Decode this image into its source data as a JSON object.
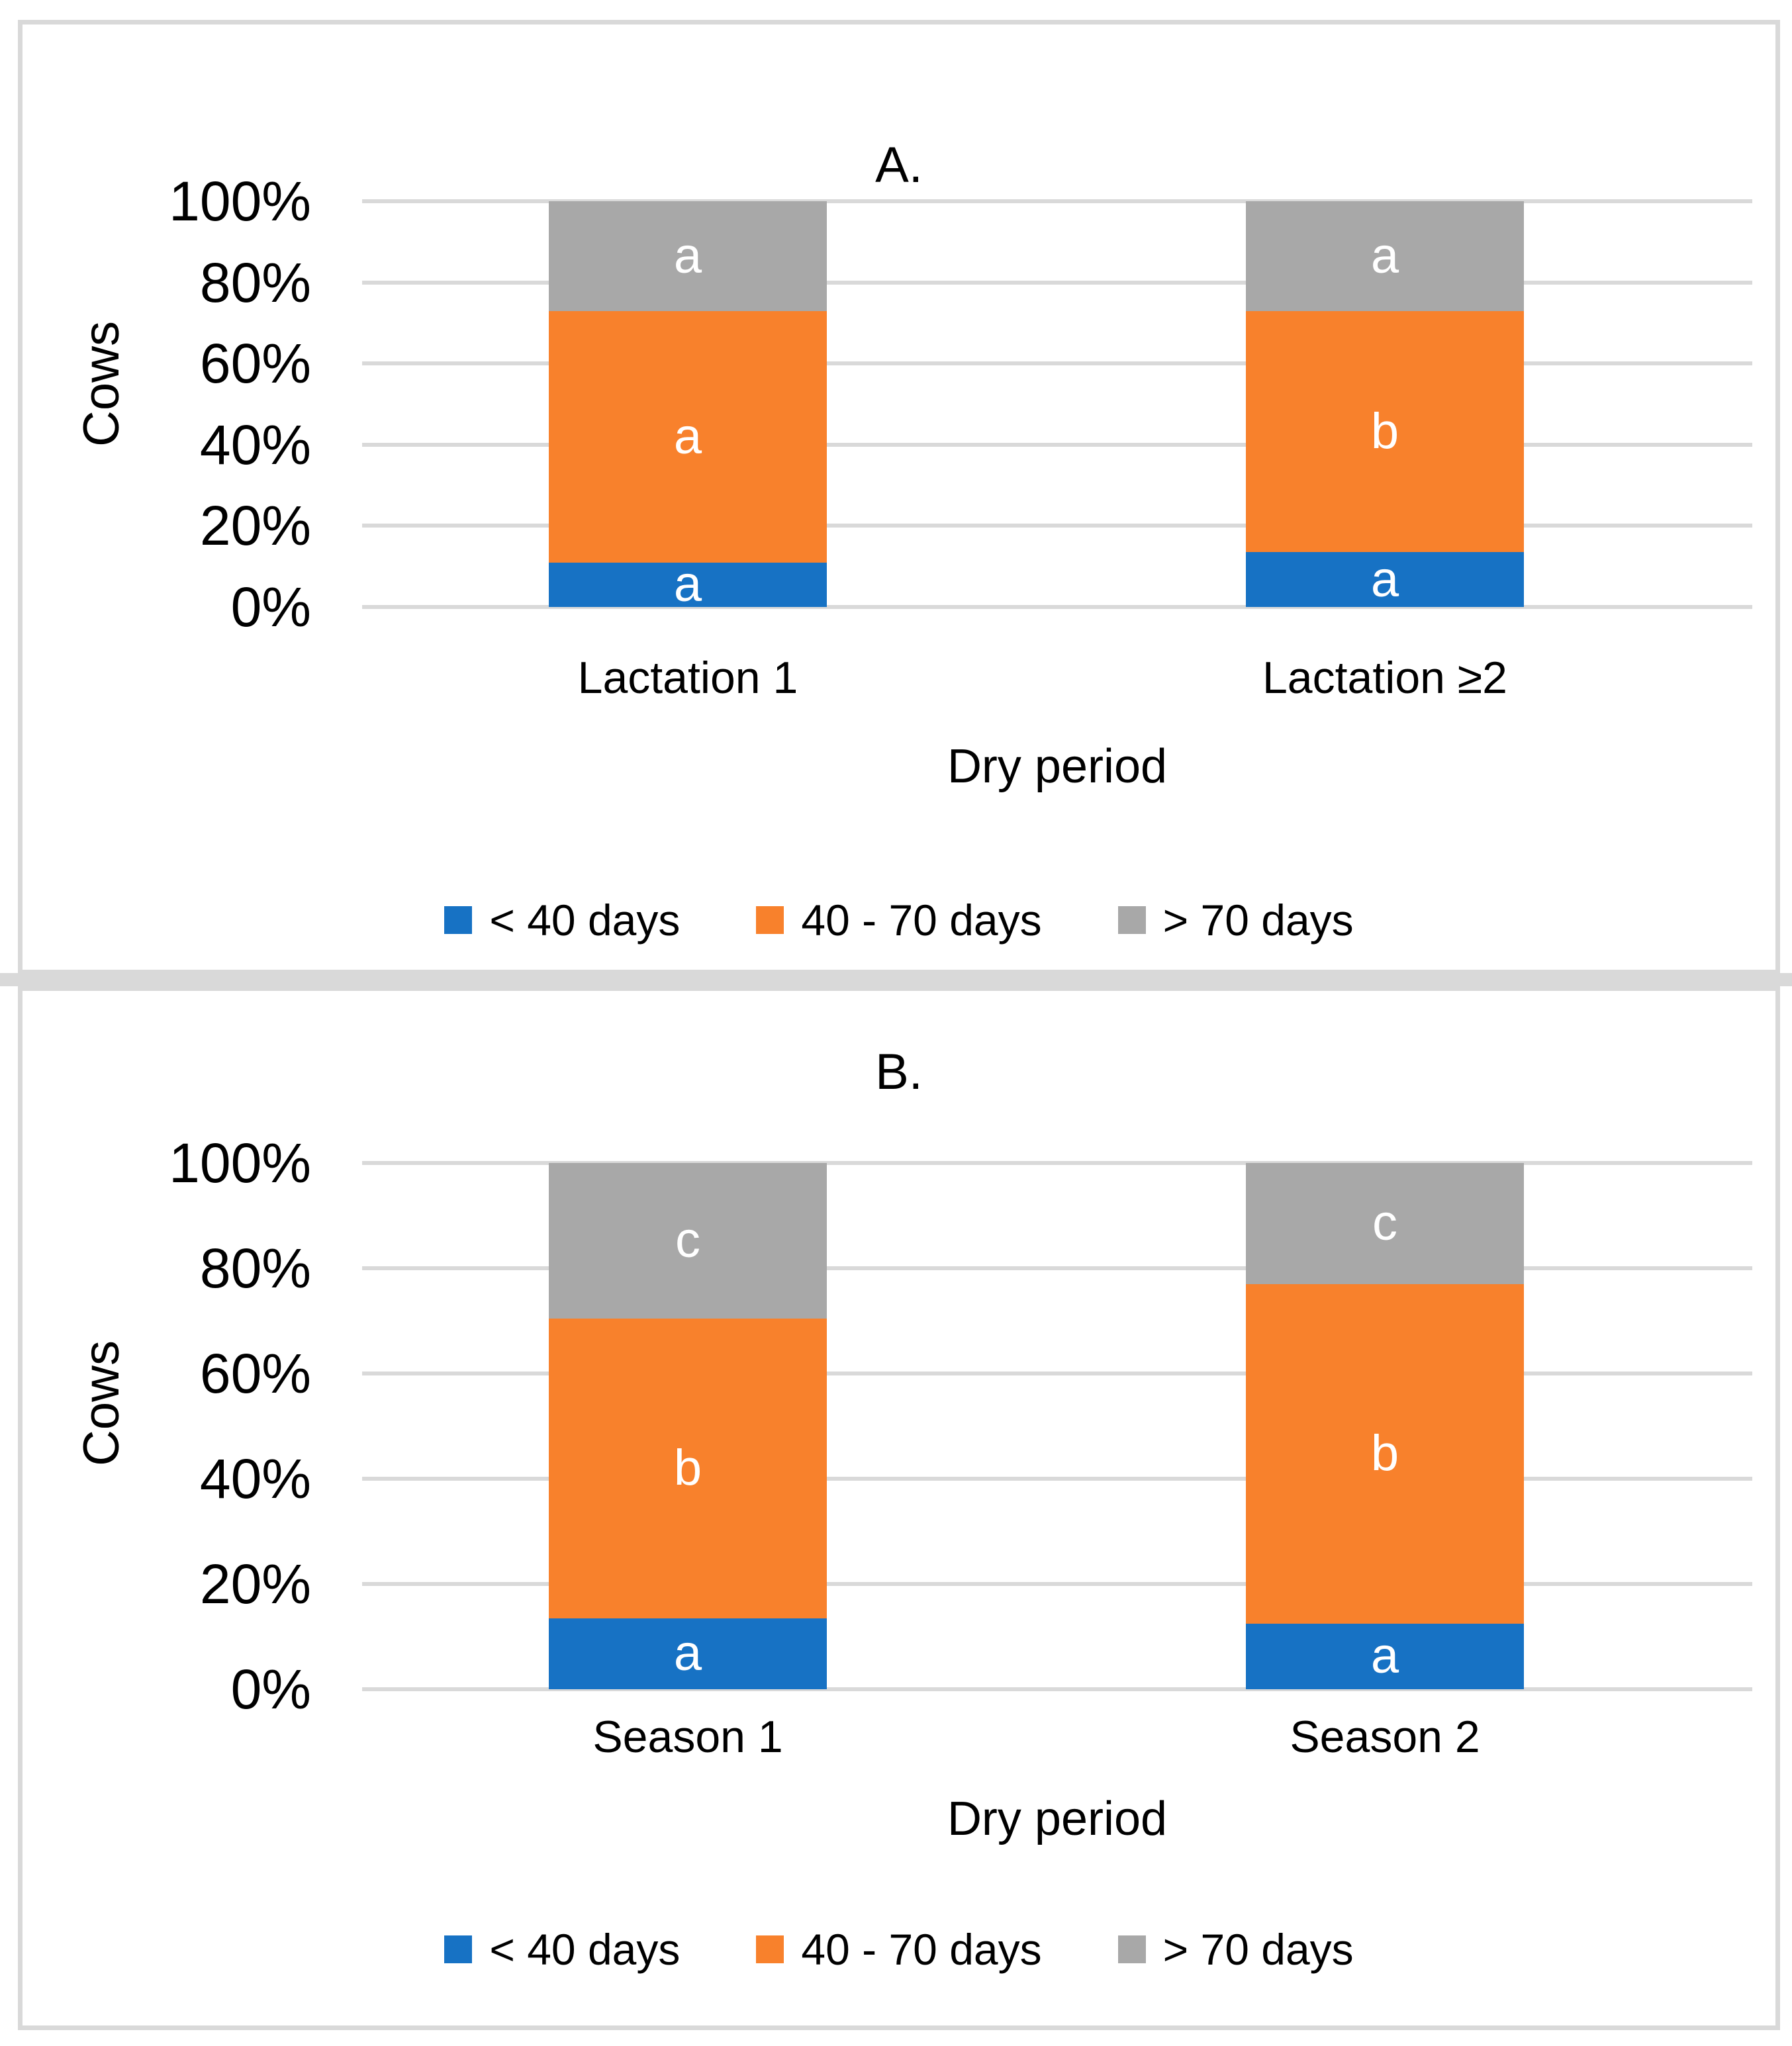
{
  "style": {
    "background": "#FFFFFF",
    "panel_border_color": "#D9D9D9",
    "gridline_color": "#D9D9D9",
    "bar_letter_color": "#FFFFFF"
  },
  "chart_data": [
    {
      "type": "bar",
      "stacked": true,
      "percent_stacked": true,
      "title": "A.",
      "ylabel": "Cows",
      "xlabel": "Dry period",
      "ylim": [
        0,
        100
      ],
      "grid": true,
      "y_ticks": [
        "100%",
        "80%",
        "60%",
        "40%",
        "20%",
        "0%"
      ],
      "categories": [
        "Lactation 1",
        "Lactation ≥2"
      ],
      "series": [
        {
          "name": "< 40 days",
          "color": "#1772C4",
          "values": [
            11,
            13.5
          ],
          "letters": [
            "a",
            "a"
          ]
        },
        {
          "name": "40 - 70 days",
          "color": "#F8812C",
          "values": [
            62,
            59.5
          ],
          "letters": [
            "a",
            "b"
          ]
        },
        {
          "name": "> 70 days",
          "color": "#A8A8A8",
          "values": [
            27,
            27
          ],
          "letters": [
            "a",
            "a"
          ]
        }
      ],
      "legend_position": "bottom"
    },
    {
      "type": "bar",
      "stacked": true,
      "percent_stacked": true,
      "title": "B.",
      "ylabel": "Cows",
      "xlabel": "Dry period",
      "ylim": [
        0,
        100
      ],
      "grid": true,
      "y_ticks": [
        "100%",
        "80%",
        "60%",
        "40%",
        "20%",
        "0%"
      ],
      "categories": [
        "Season 1",
        "Season 2"
      ],
      "series": [
        {
          "name": "< 40 days",
          "color": "#1772C4",
          "values": [
            13.5,
            12.5
          ],
          "letters": [
            "a",
            "a"
          ]
        },
        {
          "name": "40 - 70 days",
          "color": "#F8812C",
          "values": [
            57,
            64.5
          ],
          "letters": [
            "b",
            "b"
          ]
        },
        {
          "name": "> 70 days",
          "color": "#A8A8A8",
          "values": [
            29.5,
            23
          ],
          "letters": [
            "c",
            "c"
          ]
        }
      ],
      "legend_position": "bottom"
    }
  ]
}
